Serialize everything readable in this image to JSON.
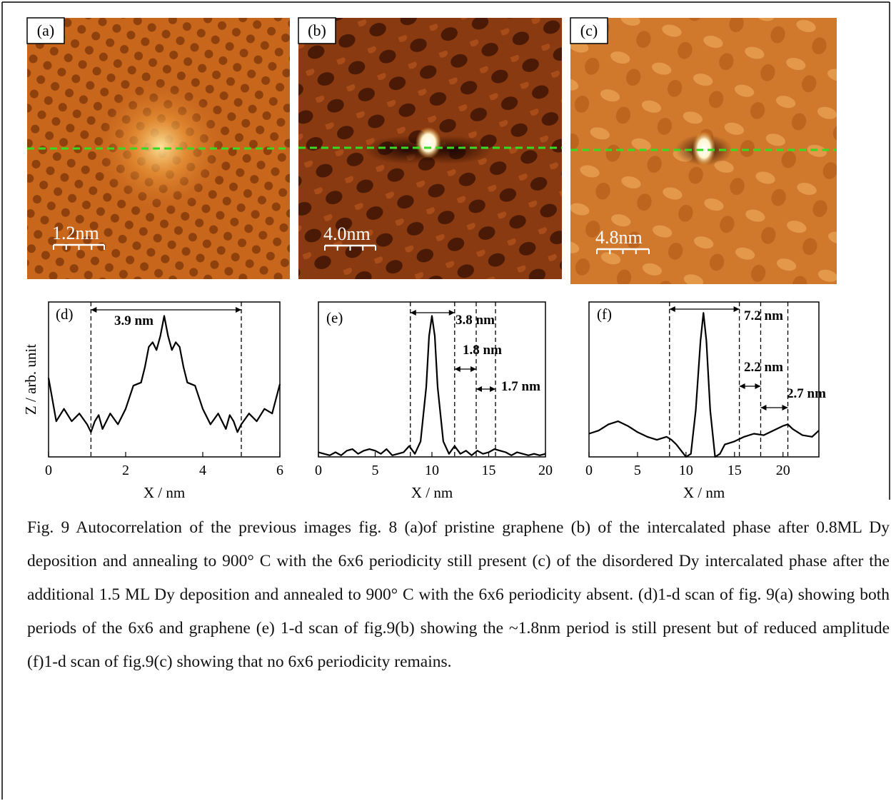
{
  "panels": [
    {
      "label": "(a)",
      "scale_bar": "1.2nm"
    },
    {
      "label": "(b)",
      "scale_bar": "4.0nm"
    },
    {
      "label": "(c)",
      "scale_bar": "4.8nm"
    }
  ],
  "profiles": [
    {
      "label": "(d)",
      "y_label": "Z / arb. unit",
      "x_label": "X / nm",
      "xlim": [
        0,
        6
      ],
      "xticks": [
        0,
        2,
        4,
        6
      ],
      "ylim": [
        0,
        1
      ],
      "x": [
        0,
        0.2,
        0.4,
        0.6,
        0.8,
        1.0,
        1.1,
        1.2,
        1.3,
        1.4,
        1.6,
        1.8,
        2.0,
        2.2,
        2.4,
        2.5,
        2.6,
        2.7,
        2.8,
        2.9,
        3.0,
        3.1,
        3.2,
        3.3,
        3.4,
        3.5,
        3.6,
        3.8,
        4.0,
        4.2,
        4.4,
        4.6,
        4.7,
        4.8,
        4.9,
        5.0,
        5.2,
        5.4,
        5.6,
        5.8,
        6.0
      ],
      "values": [
        0.51,
        0.23,
        0.31,
        0.23,
        0.28,
        0.21,
        0.16,
        0.23,
        0.27,
        0.18,
        0.28,
        0.21,
        0.31,
        0.46,
        0.48,
        0.58,
        0.71,
        0.74,
        0.69,
        0.78,
        0.91,
        0.78,
        0.69,
        0.74,
        0.71,
        0.58,
        0.48,
        0.46,
        0.31,
        0.21,
        0.28,
        0.18,
        0.27,
        0.23,
        0.16,
        0.21,
        0.28,
        0.23,
        0.31,
        0.28,
        0.47
      ],
      "markers": [
        1.1,
        5.0
      ],
      "annotations": [
        {
          "text": "3.9 nm",
          "from": 1.1,
          "to": 5.0
        }
      ]
    },
    {
      "label": "(e)",
      "x_label": "X / nm",
      "xlim": [
        0,
        20
      ],
      "xticks": [
        0,
        5,
        10,
        15,
        20
      ],
      "ylim": [
        0,
        1
      ],
      "x": [
        0,
        0.5,
        1,
        1.5,
        2,
        2.5,
        3,
        3.5,
        4,
        4.5,
        5,
        5.5,
        6,
        6.5,
        7,
        7.5,
        8,
        8.5,
        9,
        9.5,
        9.75,
        10,
        10.25,
        10.5,
        11,
        11.5,
        12,
        12.5,
        13,
        13.5,
        14,
        14.5,
        15,
        15.5,
        16,
        16.5,
        17,
        17.5,
        18,
        18.5,
        19,
        19.5,
        20
      ],
      "values": [
        0.03,
        0.02,
        0.01,
        0.03,
        0.01,
        0.04,
        0.05,
        0.02,
        0.04,
        0.05,
        0.04,
        0.02,
        0.05,
        0.01,
        0.02,
        0.03,
        0.07,
        0.02,
        0.1,
        0.45,
        0.78,
        0.91,
        0.78,
        0.45,
        0.1,
        0.02,
        0.07,
        0.02,
        0.04,
        0.01,
        0.04,
        0.02,
        0.03,
        0.05,
        0.04,
        0.03,
        0.01,
        0.03,
        0.02,
        0.01,
        0.02,
        0.01,
        0.02
      ],
      "markers": [
        8.1,
        12.0,
        13.9,
        15.6
      ],
      "annotations": [
        {
          "text": "3.8 nm",
          "from": 8.1,
          "to": 12.0
        },
        {
          "text": "1.8 nm",
          "from": 12.0,
          "to": 13.9
        },
        {
          "text": "1.7 nm",
          "from": 13.9,
          "to": 15.6
        }
      ]
    },
    {
      "label": "(f)",
      "x_label": "X / nm",
      "xlim": [
        0,
        23.7
      ],
      "xticks": [
        0,
        5,
        10,
        15,
        20
      ],
      "ylim": [
        0,
        1
      ],
      "x": [
        0,
        1,
        2,
        3,
        4,
        5,
        6,
        7,
        8,
        8.5,
        9,
        9.5,
        10,
        10.5,
        11,
        11.5,
        11.8,
        12.1,
        12.5,
        13,
        13.5,
        14,
        15,
        16,
        17,
        18,
        19,
        20,
        20.5,
        21,
        22,
        23,
        23.7
      ],
      "values": [
        0.15,
        0.17,
        0.21,
        0.23,
        0.2,
        0.16,
        0.13,
        0.11,
        0.13,
        0.11,
        0.08,
        0.04,
        0.0,
        0.02,
        0.3,
        0.75,
        0.93,
        0.75,
        0.3,
        0.0,
        0.02,
        0.08,
        0.1,
        0.13,
        0.15,
        0.14,
        0.17,
        0.2,
        0.21,
        0.18,
        0.14,
        0.13,
        0.17
      ],
      "markers": [
        8.3,
        15.5,
        17.7,
        20.5
      ],
      "annotations": [
        {
          "text": "7.2 nm",
          "from": 8.3,
          "to": 15.5
        },
        {
          "text": "2.2 nm",
          "from": 15.5,
          "to": 17.7
        },
        {
          "text": "2.7 nm",
          "from": 17.7,
          "to": 20.5
        }
      ]
    }
  ],
  "caption": "Fig. 9 Autocorrelation of the previous images fig. 8 (a)of pristine graphene (b) of the intercalated phase after 0.8ML Dy deposition and annealing to 900° C with the 6x6 periodicity still present (c) of the disordered Dy intercalated phase after the additional 1.5 ML Dy deposition and annealed to 900° C with the 6x6 periodicity absent. (d)1-d scan of fig. 9(a) showing both periods  of the 6x6 and graphene (e) 1-d scan of fig.9(b) showing the ~1.8nm period  is still present but of reduced amplitude (f)1-d scan of fig.9(c) showing that no 6x6 periodicity remains."
}
